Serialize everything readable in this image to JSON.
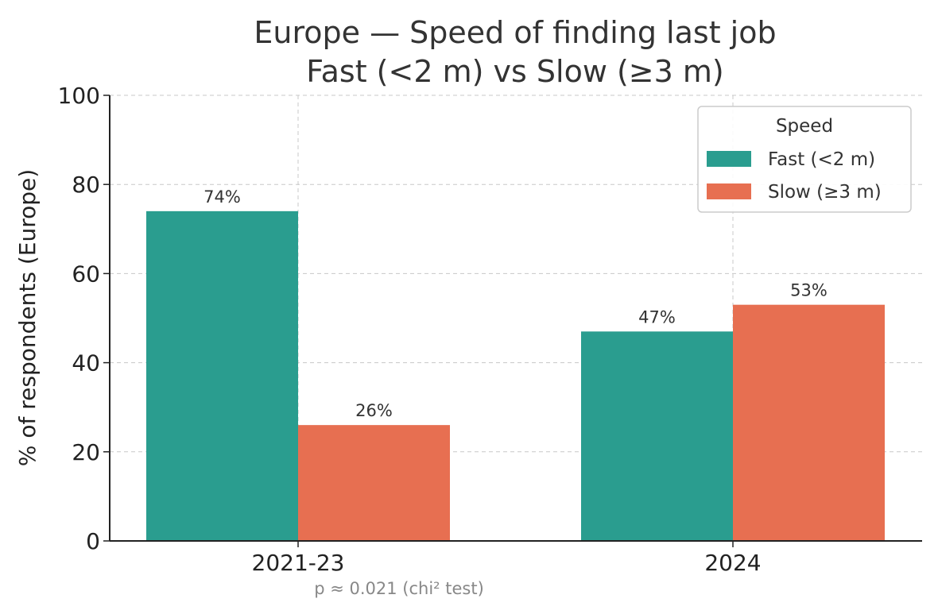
{
  "chart_data": {
    "type": "bar",
    "title": "Europe — Speed of finding last job",
    "subtitle": "Fast (<2 m) vs Slow (≥3 m)",
    "ylabel": "% of respondents (Europe)",
    "xlabel": "",
    "categories": [
      "2021-23",
      "2024"
    ],
    "series": [
      {
        "name": "Fast (<2 m)",
        "values": [
          74,
          47
        ],
        "labels": [
          "74%",
          "47%"
        ],
        "color": "#2a9d8f"
      },
      {
        "name": "Slow (≥3 m)",
        "values": [
          26,
          53
        ],
        "labels": [
          "26%",
          "53%"
        ],
        "color": "#e76f51"
      }
    ],
    "ylim": [
      0,
      100
    ],
    "yticks": [
      0,
      20,
      40,
      60,
      80,
      100
    ],
    "grid": true,
    "legend": {
      "title": "Speed",
      "placement": "top-right"
    },
    "annotation": "p ≈ 0.021 (chi² test)"
  }
}
